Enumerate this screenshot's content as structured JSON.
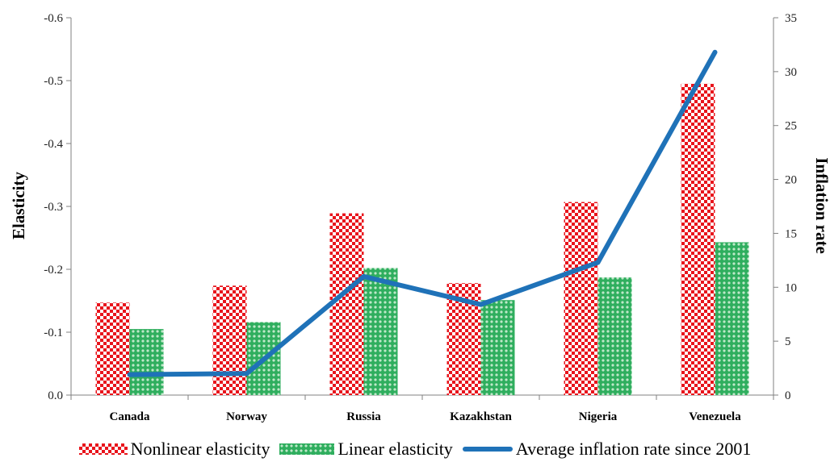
{
  "chart_data": {
    "type": "bar",
    "categories": [
      "Canada",
      "Norway",
      "Russia",
      "Kazakhstan",
      "Nigeria",
      "Venezuela"
    ],
    "series": [
      {
        "name": "Nonlinear elasticity",
        "type": "bar",
        "axis": "left",
        "color": "#e8141c",
        "values": [
          -0.147,
          -0.174,
          -0.289,
          -0.178,
          -0.307,
          -0.495
        ]
      },
      {
        "name": "Linear elasticity",
        "type": "bar",
        "axis": "left",
        "color": "#2fae5e",
        "values": [
          -0.105,
          -0.116,
          -0.202,
          -0.151,
          -0.187,
          -0.243
        ]
      },
      {
        "name": "Average inflation rate since 2001",
        "type": "line",
        "axis": "right",
        "color": "#1f72b8",
        "values": [
          1.9,
          2.0,
          11.0,
          8.4,
          12.3,
          31.8
        ]
      }
    ],
    "ylabel": "Elasticity",
    "y2label": "Inflation rate",
    "ylim": [
      0,
      -0.6
    ],
    "y2lim": [
      0,
      35
    ],
    "yticks": [
      "-0.6",
      "-0.5",
      "-0.4",
      "-0.3",
      "-0.2",
      "-0.1",
      "0.0"
    ],
    "y2ticks": [
      "35",
      "30",
      "25",
      "20",
      "15",
      "10",
      "5",
      "0"
    ],
    "legend_position": "bottom",
    "grid": false
  }
}
